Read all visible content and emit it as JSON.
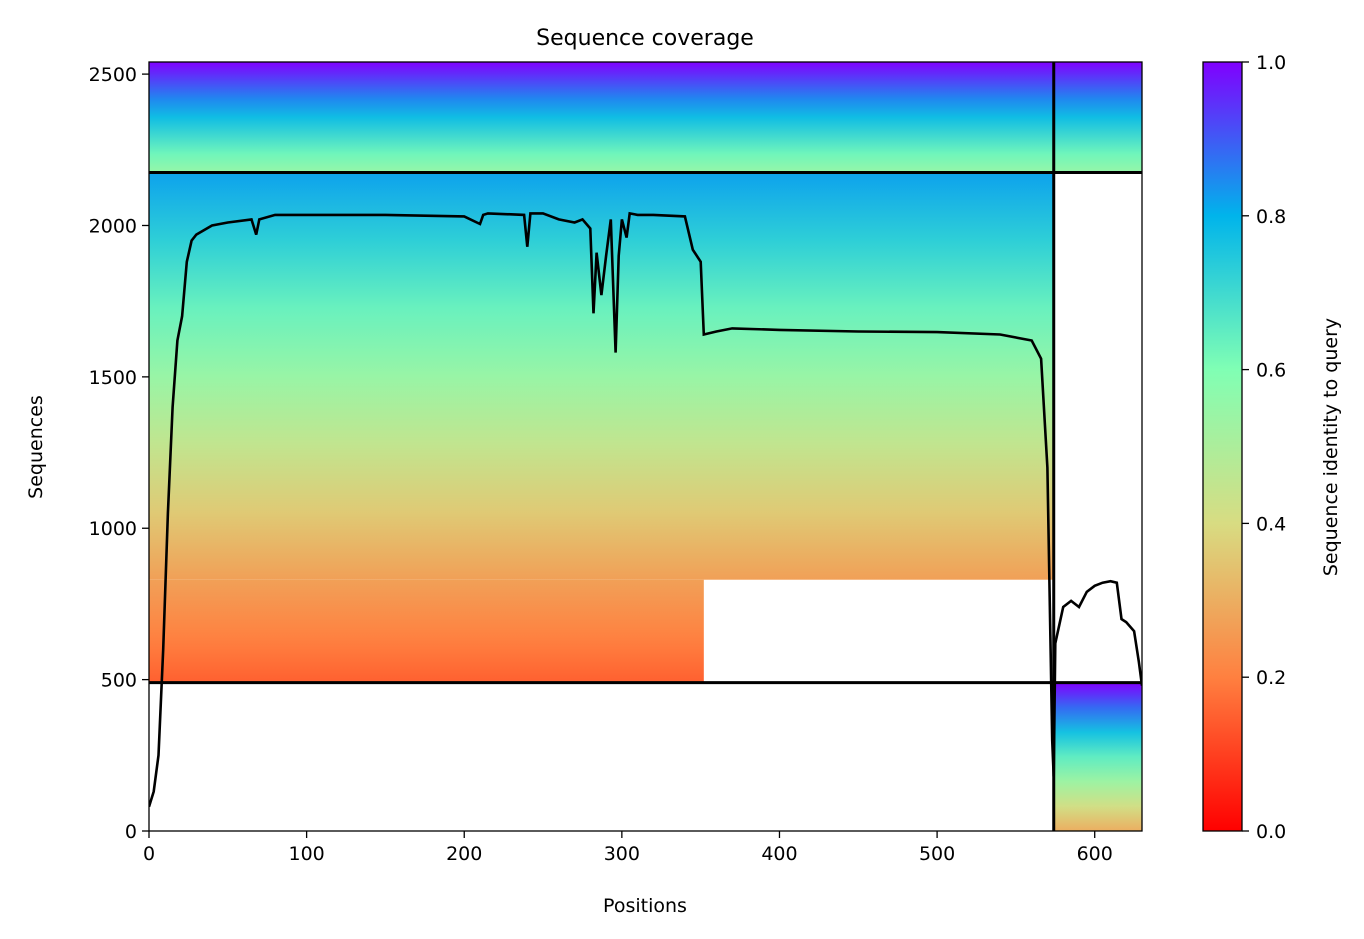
{
  "chart_data": {
    "type": "heatmap",
    "title": "Sequence coverage",
    "xlabel": "Positions",
    "ylabel": "Sequences",
    "xlim": [
      0,
      630
    ],
    "ylim": [
      0,
      2540
    ],
    "x_ticks": [
      0,
      100,
      200,
      300,
      400,
      500,
      600
    ],
    "y_ticks": [
      0,
      500,
      1000,
      1500,
      2000,
      2500
    ],
    "grid": false,
    "colorbar": {
      "label": "Sequence identity to query",
      "colormap": "rainbow_r",
      "range": [
        0,
        1
      ],
      "ticks": [
        "0.0",
        "0.2",
        "0.4",
        "0.6",
        "0.8",
        "1.0"
      ],
      "colors": [
        "#ff0000",
        "#ff8040",
        "#d8dc82",
        "#80ffb4",
        "#00b4eb",
        "#8000ff"
      ]
    },
    "block_dividers": {
      "horizontal_at_sequence": [
        490,
        2175
      ],
      "vertical_at_position": 574
    },
    "blocks": [
      {
        "name": "upper-block",
        "x_range": [
          0,
          574
        ],
        "y_range": [
          2175,
          2540
        ],
        "identity_range": [
          0.55,
          1.0
        ]
      },
      {
        "name": "upper-right-block",
        "x_range": [
          574,
          630
        ],
        "y_range": [
          2175,
          2540
        ],
        "identity_range": [
          0.55,
          1.0
        ]
      },
      {
        "name": "main-block-full",
        "x_range": [
          0,
          574
        ],
        "y_range": [
          830,
          2175
        ],
        "identity_range": [
          0.27,
          0.82
        ]
      },
      {
        "name": "main-block-partial",
        "x_range": [
          0,
          352
        ],
        "y_range": [
          490,
          830
        ],
        "identity_range": [
          0.15,
          0.27
        ]
      },
      {
        "name": "lower-right-block",
        "x_range": [
          574,
          630
        ],
        "y_range": [
          0,
          490
        ],
        "identity_range": [
          0.3,
          1.0
        ]
      }
    ],
    "series": [
      {
        "type": "line",
        "color": "#000000",
        "x": [
          0,
          3,
          6,
          9,
          12,
          15,
          18,
          21,
          24,
          27,
          30,
          40,
          50,
          65,
          68,
          70,
          80,
          100,
          150,
          200,
          210,
          212,
          215,
          238,
          240,
          242,
          250,
          260,
          270,
          275,
          280,
          282,
          284,
          287,
          290,
          293,
          296,
          298,
          300,
          303,
          305,
          310,
          320,
          340,
          345,
          350,
          352,
          360,
          370,
          400,
          450,
          500,
          540,
          560,
          566,
          570,
          572,
          573,
          574,
          575,
          580,
          585,
          590,
          595,
          600,
          605,
          610,
          614,
          617,
          620,
          625,
          628,
          630
        ],
        "y": [
          80,
          130,
          250,
          600,
          1050,
          1400,
          1620,
          1700,
          1880,
          1950,
          1970,
          2000,
          2010,
          2020,
          1970,
          2020,
          2035,
          2035,
          2035,
          2030,
          2005,
          2035,
          2040,
          2035,
          1930,
          2040,
          2040,
          2020,
          2010,
          2020,
          1990,
          1710,
          1910,
          1770,
          1900,
          2020,
          1580,
          1900,
          2020,
          1960,
          2040,
          2035,
          2035,
          2030,
          1920,
          1880,
          1640,
          1650,
          1660,
          1655,
          1650,
          1648,
          1640,
          1620,
          1560,
          1200,
          600,
          300,
          180,
          620,
          740,
          760,
          740,
          790,
          810,
          820,
          825,
          820,
          700,
          690,
          660,
          560,
          480
        ]
      }
    ]
  }
}
